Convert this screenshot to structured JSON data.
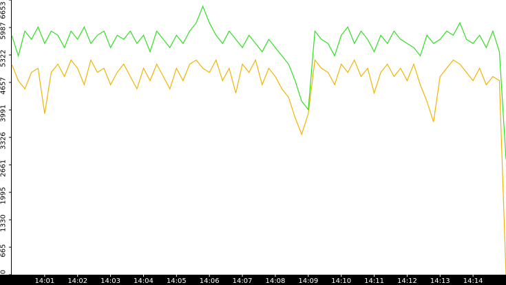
{
  "chart_data": {
    "type": "line",
    "x": [
      0,
      0.2,
      0.4,
      0.6,
      0.8,
      1,
      1.2,
      1.4,
      1.6,
      1.8,
      2,
      2.2,
      2.4,
      2.6,
      2.8,
      3,
      3.2,
      3.4,
      3.6,
      3.8,
      4,
      4.2,
      4.4,
      4.6,
      4.8,
      5,
      5.2,
      5.4,
      5.6,
      5.8,
      6,
      6.2,
      6.4,
      6.6,
      6.8,
      7,
      7.2,
      7.4,
      7.6,
      7.8,
      8,
      8.2,
      8.4,
      8.6,
      8.8,
      9,
      9.2,
      9.4,
      9.6,
      9.8,
      10,
      10.2,
      10.4,
      10.6,
      10.8,
      11,
      11.2,
      11.4,
      11.6,
      11.8,
      12,
      12.2,
      12.4,
      12.6,
      12.8,
      13,
      13.2,
      13.4,
      13.6,
      13.8,
      14,
      14.2,
      14.4,
      14.6,
      14.8,
      15
    ],
    "series": [
      {
        "color": "#2ee01e",
        "values": [
          5800,
          5300,
          5900,
          5700,
          6000,
          5600,
          5900,
          5800,
          5500,
          5900,
          5700,
          6000,
          5600,
          5800,
          5900,
          5500,
          5800,
          5700,
          5900,
          5600,
          5800,
          5400,
          5900,
          5700,
          5500,
          5800,
          5600,
          5900,
          6100,
          6500,
          6100,
          5800,
          5600,
          5900,
          5700,
          5500,
          5800,
          5600,
          5400,
          5700,
          5500,
          5300,
          5100,
          4700,
          4200,
          4000,
          5900,
          5700,
          5600,
          5300,
          5800,
          6000,
          5600,
          5900,
          5700,
          5400,
          5800,
          5600,
          5900,
          5700,
          5600,
          5500,
          5300,
          5800,
          5600,
          5700,
          5900,
          5800,
          6100,
          5700,
          5600,
          5800,
          5500,
          5900,
          5400,
          2800
        ]
      },
      {
        "color": "#f0b400",
        "values": [
          5100,
          4700,
          4500,
          4900,
          5000,
          3900,
          4900,
          5100,
          4800,
          5200,
          5000,
          4600,
          5200,
          4900,
          5000,
          4600,
          4900,
          5100,
          4800,
          4500,
          5000,
          4700,
          5100,
          4800,
          4500,
          5000,
          4700,
          5100,
          5200,
          5000,
          4900,
          5200,
          4700,
          5000,
          4400,
          5100,
          4900,
          5200,
          4600,
          5000,
          4800,
          4500,
          4300,
          3800,
          3400,
          3900,
          5200,
          5000,
          4900,
          4600,
          5100,
          4900,
          5200,
          4800,
          5000,
          4400,
          4900,
          5100,
          4800,
          5000,
          4700,
          5100,
          4600,
          4200,
          3700,
          4800,
          5000,
          5200,
          5100,
          4900,
          4700,
          5000,
          4600,
          4800,
          4700,
          0
        ]
      }
    ],
    "xlim": [
      0,
      15
    ],
    "xticks": [
      {
        "value": 1,
        "label": "14:01"
      },
      {
        "value": 2,
        "label": "14:02"
      },
      {
        "value": 3,
        "label": "14:03"
      },
      {
        "value": 4,
        "label": "14:04"
      },
      {
        "value": 5,
        "label": "14:05"
      },
      {
        "value": 6,
        "label": "14:06"
      },
      {
        "value": 7,
        "label": "14:07"
      },
      {
        "value": 8,
        "label": "14:08"
      },
      {
        "value": 9,
        "label": "14:09"
      },
      {
        "value": 10,
        "label": "14:10"
      },
      {
        "value": 11,
        "label": "14:11"
      },
      {
        "value": 12,
        "label": "14:12"
      },
      {
        "value": 13,
        "label": "14:13"
      },
      {
        "value": 14,
        "label": "14:14"
      }
    ],
    "ylim": [
      0,
      6653
    ],
    "yticks": [
      0,
      665,
      1330,
      1995,
      2661,
      3326,
      3991,
      4657,
      5322,
      5987,
      6653
    ]
  }
}
